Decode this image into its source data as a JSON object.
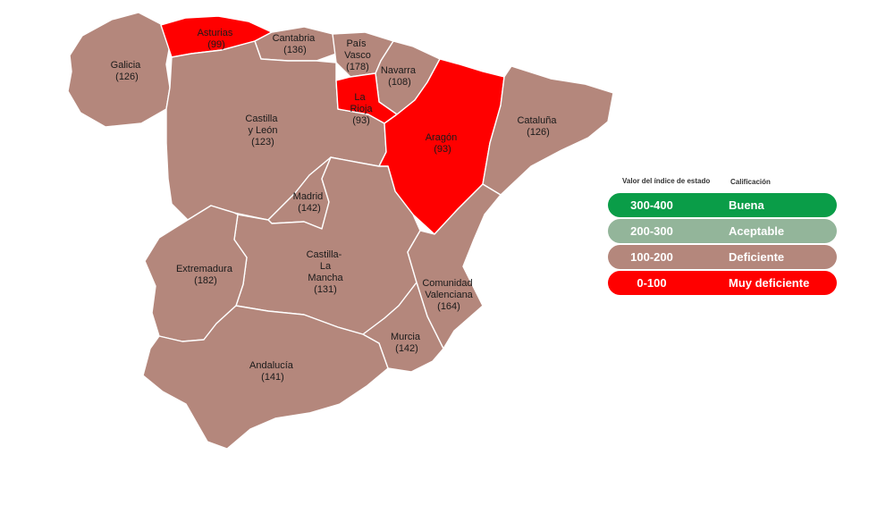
{
  "colors": {
    "buena": "#0a9d48",
    "aceptable": "#93b59a",
    "deficiente": "#b4877c",
    "muy_deficiente": "#ff0000",
    "border": "#ffffff"
  },
  "legend": {
    "header_value": "Valor del índice de estado",
    "header_rating": "Calificación",
    "rows": [
      {
        "range": "300-400",
        "rating": "Buena",
        "color": "#0a9d48"
      },
      {
        "range": "200-300",
        "rating": "Aceptable",
        "color": "#93b59a"
      },
      {
        "range": "100-200",
        "rating": "Deficiente",
        "color": "#b4877c"
      },
      {
        "range": "0-100",
        "rating": "Muy deficiente",
        "color": "#ff0000"
      }
    ]
  },
  "regions": [
    {
      "id": "galicia",
      "name": "Galicia",
      "value": "(126)",
      "category": "deficiente"
    },
    {
      "id": "asturias",
      "name": "Asturias",
      "value": "(99)",
      "category": "muy_deficiente"
    },
    {
      "id": "cantabria",
      "name": "Cantabria",
      "value": "(136)",
      "category": "deficiente"
    },
    {
      "id": "pais-vasco",
      "name": "País Vasco",
      "value": "(178)",
      "category": "deficiente"
    },
    {
      "id": "navarra",
      "name": "Navarra",
      "value": "(108)",
      "category": "deficiente"
    },
    {
      "id": "la-rioja",
      "name": "La Rioja",
      "value": "(93)",
      "category": "muy_deficiente"
    },
    {
      "id": "aragon",
      "name": "Aragón",
      "value": "(93)",
      "category": "muy_deficiente"
    },
    {
      "id": "cataluna",
      "name": "Cataluña",
      "value": "(126)",
      "category": "deficiente"
    },
    {
      "id": "castilla-leon",
      "name": "Castilla y León",
      "value": "(123)",
      "category": "deficiente"
    },
    {
      "id": "madrid",
      "name": "Madrid",
      "value": "(142)",
      "category": "deficiente"
    },
    {
      "id": "castilla-la-mancha",
      "name": "Castilla-La Mancha",
      "value": "(131)",
      "category": "deficiente"
    },
    {
      "id": "extremadura",
      "name": "Extremadura",
      "value": "(182)",
      "category": "deficiente"
    },
    {
      "id": "comunidad-valenciana",
      "name": "Comunidad Valenciana",
      "value": "(164)",
      "category": "deficiente"
    },
    {
      "id": "murcia",
      "name": "Murcia",
      "value": "(142)",
      "category": "deficiente"
    },
    {
      "id": "andalucia",
      "name": "Andalucía",
      "value": "(141)",
      "category": "deficiente"
    }
  ]
}
